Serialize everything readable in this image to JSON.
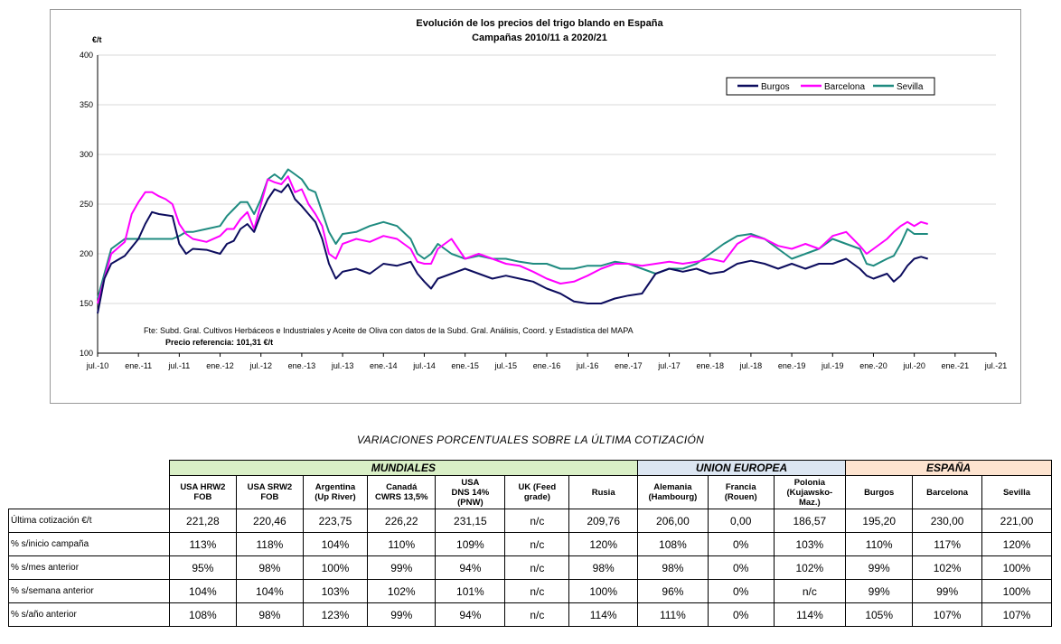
{
  "colors": {
    "burgos": "#0d0d5e",
    "barcelona": "#ff00ff",
    "sevilla": "#1f8b80",
    "mundiales_bg": "#d9efc6",
    "ue_bg": "#dce6f2",
    "espana_bg": "#fde3cf"
  },
  "chart_data": {
    "type": "line",
    "title": "Evolución de los precios del trigo blando en España",
    "subtitle": "Campañas 2010/11 a 2020/21",
    "ylabel": "€/t",
    "ylim": [
      100,
      400
    ],
    "yticks": [
      "100",
      "150",
      "200",
      "250",
      "300",
      "350",
      "400"
    ],
    "xticks": [
      "jul.-10",
      "ene.-11",
      "jul.-11",
      "ene.-12",
      "jul.-12",
      "ene.-13",
      "jul.-13",
      "ene.-14",
      "jul.-14",
      "ene.-15",
      "jul.-15",
      "ene.-16",
      "jul.-16",
      "ene.-17",
      "jul.-17",
      "ene.-18",
      "jul.-18",
      "ene.-19",
      "jul.-19",
      "ene.-20",
      "jul.-20",
      "ene.-21",
      "jul.-21"
    ],
    "x_unit": "months since jul.-10",
    "legend_position": "top-right",
    "source_note": "Fte: Subd. Gral. Cultivos Herbáceos e Industriales y Aceite de Oliva con datos de la Subd. Gral. Análisis, Coord. y Estadística del MAPA",
    "reference_note": "Precio referencia: 101,31 €/t",
    "series": [
      {
        "name": "Burgos",
        "color": "#0d0d5e",
        "points": [
          [
            0,
            140
          ],
          [
            1,
            175
          ],
          [
            2,
            190
          ],
          [
            4,
            198
          ],
          [
            6,
            215
          ],
          [
            7,
            230
          ],
          [
            8,
            242
          ],
          [
            9,
            240
          ],
          [
            11,
            238
          ],
          [
            12,
            210
          ],
          [
            13,
            200
          ],
          [
            14,
            205
          ],
          [
            16,
            204
          ],
          [
            18,
            200
          ],
          [
            19,
            210
          ],
          [
            20,
            213
          ],
          [
            21,
            225
          ],
          [
            22,
            230
          ],
          [
            23,
            222
          ],
          [
            24,
            240
          ],
          [
            25,
            255
          ],
          [
            26,
            265
          ],
          [
            27,
            262
          ],
          [
            28,
            270
          ],
          [
            29,
            255
          ],
          [
            30,
            248
          ],
          [
            31,
            240
          ],
          [
            32,
            232
          ],
          [
            33,
            215
          ],
          [
            34,
            190
          ],
          [
            35,
            175
          ],
          [
            36,
            182
          ],
          [
            38,
            185
          ],
          [
            40,
            180
          ],
          [
            42,
            190
          ],
          [
            44,
            188
          ],
          [
            46,
            192
          ],
          [
            47,
            180
          ],
          [
            48,
            172
          ],
          [
            49,
            165
          ],
          [
            50,
            175
          ],
          [
            52,
            180
          ],
          [
            54,
            185
          ],
          [
            56,
            180
          ],
          [
            58,
            175
          ],
          [
            60,
            178
          ],
          [
            62,
            175
          ],
          [
            64,
            172
          ],
          [
            66,
            165
          ],
          [
            68,
            160
          ],
          [
            70,
            152
          ],
          [
            72,
            150
          ],
          [
            74,
            150
          ],
          [
            76,
            155
          ],
          [
            78,
            158
          ],
          [
            80,
            160
          ],
          [
            82,
            180
          ],
          [
            84,
            185
          ],
          [
            86,
            182
          ],
          [
            88,
            185
          ],
          [
            90,
            180
          ],
          [
            92,
            182
          ],
          [
            94,
            190
          ],
          [
            96,
            193
          ],
          [
            98,
            190
          ],
          [
            100,
            185
          ],
          [
            102,
            190
          ],
          [
            104,
            185
          ],
          [
            106,
            190
          ],
          [
            108,
            190
          ],
          [
            110,
            195
          ],
          [
            112,
            185
          ],
          [
            113,
            178
          ],
          [
            114,
            175
          ],
          [
            116,
            180
          ],
          [
            117,
            172
          ],
          [
            118,
            178
          ],
          [
            119,
            188
          ],
          [
            120,
            195
          ],
          [
            121,
            197
          ],
          [
            122,
            195
          ]
        ]
      },
      {
        "name": "Barcelona",
        "color": "#ff00ff",
        "points": [
          [
            0,
            150
          ],
          [
            1,
            175
          ],
          [
            2,
            200
          ],
          [
            4,
            212
          ],
          [
            5,
            240
          ],
          [
            6,
            252
          ],
          [
            7,
            262
          ],
          [
            8,
            262
          ],
          [
            9,
            258
          ],
          [
            10,
            255
          ],
          [
            11,
            250
          ],
          [
            12,
            230
          ],
          [
            13,
            220
          ],
          [
            14,
            215
          ],
          [
            16,
            212
          ],
          [
            18,
            218
          ],
          [
            19,
            225
          ],
          [
            20,
            225
          ],
          [
            21,
            235
          ],
          [
            22,
            242
          ],
          [
            23,
            225
          ],
          [
            24,
            250
          ],
          [
            25,
            275
          ],
          [
            26,
            272
          ],
          [
            27,
            270
          ],
          [
            28,
            278
          ],
          [
            29,
            262
          ],
          [
            30,
            265
          ],
          [
            31,
            250
          ],
          [
            32,
            240
          ],
          [
            33,
            228
          ],
          [
            34,
            200
          ],
          [
            35,
            195
          ],
          [
            36,
            210
          ],
          [
            38,
            215
          ],
          [
            40,
            212
          ],
          [
            42,
            218
          ],
          [
            44,
            215
          ],
          [
            46,
            205
          ],
          [
            47,
            192
          ],
          [
            48,
            190
          ],
          [
            49,
            190
          ],
          [
            50,
            205
          ],
          [
            52,
            215
          ],
          [
            54,
            195
          ],
          [
            56,
            200
          ],
          [
            58,
            195
          ],
          [
            60,
            190
          ],
          [
            62,
            188
          ],
          [
            64,
            182
          ],
          [
            66,
            175
          ],
          [
            68,
            170
          ],
          [
            70,
            172
          ],
          [
            72,
            178
          ],
          [
            74,
            185
          ],
          [
            76,
            190
          ],
          [
            78,
            190
          ],
          [
            80,
            188
          ],
          [
            82,
            190
          ],
          [
            84,
            192
          ],
          [
            86,
            190
          ],
          [
            88,
            192
          ],
          [
            90,
            195
          ],
          [
            92,
            192
          ],
          [
            94,
            210
          ],
          [
            96,
            218
          ],
          [
            98,
            215
          ],
          [
            100,
            208
          ],
          [
            102,
            205
          ],
          [
            104,
            210
          ],
          [
            106,
            205
          ],
          [
            108,
            218
          ],
          [
            110,
            222
          ],
          [
            112,
            208
          ],
          [
            113,
            200
          ],
          [
            114,
            205
          ],
          [
            116,
            215
          ],
          [
            117,
            222
          ],
          [
            118,
            228
          ],
          [
            119,
            232
          ],
          [
            120,
            228
          ],
          [
            121,
            232
          ],
          [
            122,
            230
          ]
        ]
      },
      {
        "name": "Sevilla",
        "color": "#1f8b80",
        "points": [
          [
            0,
            155
          ],
          [
            1,
            180
          ],
          [
            2,
            205
          ],
          [
            4,
            215
          ],
          [
            6,
            215
          ],
          [
            8,
            215
          ],
          [
            10,
            215
          ],
          [
            11,
            215
          ],
          [
            12,
            218
          ],
          [
            13,
            222
          ],
          [
            14,
            222
          ],
          [
            16,
            225
          ],
          [
            18,
            228
          ],
          [
            19,
            238
          ],
          [
            20,
            245
          ],
          [
            21,
            252
          ],
          [
            22,
            252
          ],
          [
            23,
            240
          ],
          [
            24,
            255
          ],
          [
            25,
            275
          ],
          [
            26,
            280
          ],
          [
            27,
            275
          ],
          [
            28,
            285
          ],
          [
            29,
            280
          ],
          [
            30,
            275
          ],
          [
            31,
            265
          ],
          [
            32,
            262
          ],
          [
            33,
            242
          ],
          [
            34,
            222
          ],
          [
            35,
            210
          ],
          [
            36,
            220
          ],
          [
            38,
            222
          ],
          [
            40,
            228
          ],
          [
            42,
            232
          ],
          [
            44,
            228
          ],
          [
            46,
            215
          ],
          [
            47,
            200
          ],
          [
            48,
            195
          ],
          [
            49,
            200
          ],
          [
            50,
            210
          ],
          [
            52,
            200
          ],
          [
            54,
            195
          ],
          [
            56,
            198
          ],
          [
            58,
            195
          ],
          [
            60,
            195
          ],
          [
            62,
            192
          ],
          [
            64,
            190
          ],
          [
            66,
            190
          ],
          [
            68,
            185
          ],
          [
            70,
            185
          ],
          [
            72,
            188
          ],
          [
            74,
            188
          ],
          [
            76,
            192
          ],
          [
            78,
            190
          ],
          [
            80,
            185
          ],
          [
            82,
            180
          ],
          [
            84,
            185
          ],
          [
            86,
            185
          ],
          [
            88,
            190
          ],
          [
            90,
            200
          ],
          [
            92,
            210
          ],
          [
            94,
            218
          ],
          [
            96,
            220
          ],
          [
            98,
            215
          ],
          [
            100,
            205
          ],
          [
            102,
            195
          ],
          [
            104,
            200
          ],
          [
            106,
            205
          ],
          [
            108,
            215
          ],
          [
            110,
            210
          ],
          [
            112,
            205
          ],
          [
            113,
            190
          ],
          [
            114,
            188
          ],
          [
            116,
            195
          ],
          [
            117,
            198
          ],
          [
            118,
            210
          ],
          [
            119,
            225
          ],
          [
            120,
            220
          ],
          [
            121,
            220
          ],
          [
            122,
            220
          ]
        ]
      }
    ]
  },
  "table": {
    "title": "VARIACIONES PORCENTUALES SOBRE LA ÚLTIMA COTIZACIÓN",
    "groups": [
      "MUNDIALES",
      "UNION EUROPEA",
      "ESPAÑA"
    ],
    "columns": [
      [
        "USA HRW2",
        "FOB"
      ],
      [
        "USA SRW2",
        "FOB"
      ],
      [
        "Argentina",
        "(Up River)"
      ],
      [
        "Canadá",
        "CWRS 13,5%"
      ],
      [
        "USA",
        "DNS 14%",
        "(PNW)"
      ],
      [
        "UK (Feed",
        "grade)"
      ],
      [
        "Rusia"
      ],
      [
        "Alemania",
        "(Hambourg)"
      ],
      [
        "Francia",
        "(Rouen)"
      ],
      [
        "Polonia",
        "(Kujawsko-",
        "Maz.)"
      ],
      [
        "Burgos"
      ],
      [
        "Barcelona"
      ],
      [
        "Sevilla"
      ]
    ],
    "rows": [
      {
        "label": "Última cotización €/t",
        "values": [
          "221,28",
          "220,46",
          "223,75",
          "226,22",
          "231,15",
          "n/c",
          "209,76",
          "206,00",
          "0,00",
          "186,57",
          "195,20",
          "230,00",
          "221,00"
        ]
      },
      {
        "label": "% s/inicio campaña",
        "values": [
          "113%",
          "118%",
          "104%",
          "110%",
          "109%",
          "n/c",
          "120%",
          "108%",
          "0%",
          "103%",
          "110%",
          "117%",
          "120%"
        ]
      },
      {
        "label": "% s/mes anterior",
        "values": [
          "95%",
          "98%",
          "100%",
          "99%",
          "94%",
          "n/c",
          "98%",
          "98%",
          "0%",
          "102%",
          "99%",
          "102%",
          "100%"
        ]
      },
      {
        "label": "% s/semana anterior",
        "values": [
          "104%",
          "104%",
          "103%",
          "102%",
          "101%",
          "n/c",
          "100%",
          "96%",
          "0%",
          "n/c",
          "99%",
          "99%",
          "100%"
        ]
      },
      {
        "label": "% s/año anterior",
        "values": [
          "108%",
          "98%",
          "123%",
          "99%",
          "94%",
          "n/c",
          "114%",
          "111%",
          "0%",
          "114%",
          "105%",
          "107%",
          "107%"
        ]
      }
    ]
  }
}
